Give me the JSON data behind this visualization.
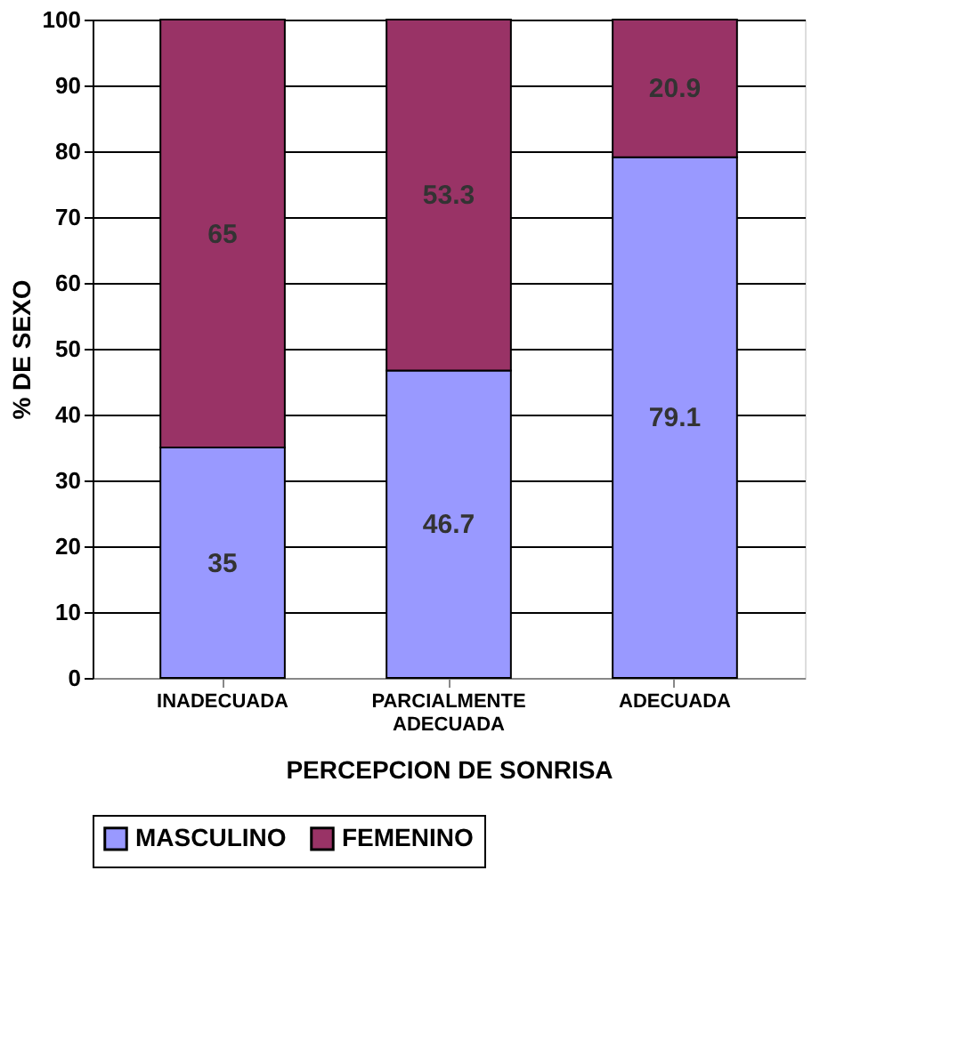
{
  "chart_data": {
    "type": "bar",
    "stacked": true,
    "xlabel": "PERCEPCION DE SONRISA",
    "ylabel": "% DE SEXO",
    "categories": [
      "INADECUADA",
      "PARCIALMENTE ADECUADA",
      "ADECUADA"
    ],
    "series": [
      {
        "name": "MASCULINO",
        "color": "#9999ff",
        "values": [
          35,
          46.7,
          79.1
        ]
      },
      {
        "name": "FEMENINO",
        "color": "#993366",
        "values": [
          65,
          53.3,
          20.9
        ]
      }
    ],
    "ylim": [
      0,
      100
    ],
    "yticks": [
      0,
      10,
      20,
      30,
      40,
      50,
      60,
      70,
      80,
      90,
      100
    ],
    "grid": "y",
    "legend": "bottom",
    "data_labels": true
  }
}
